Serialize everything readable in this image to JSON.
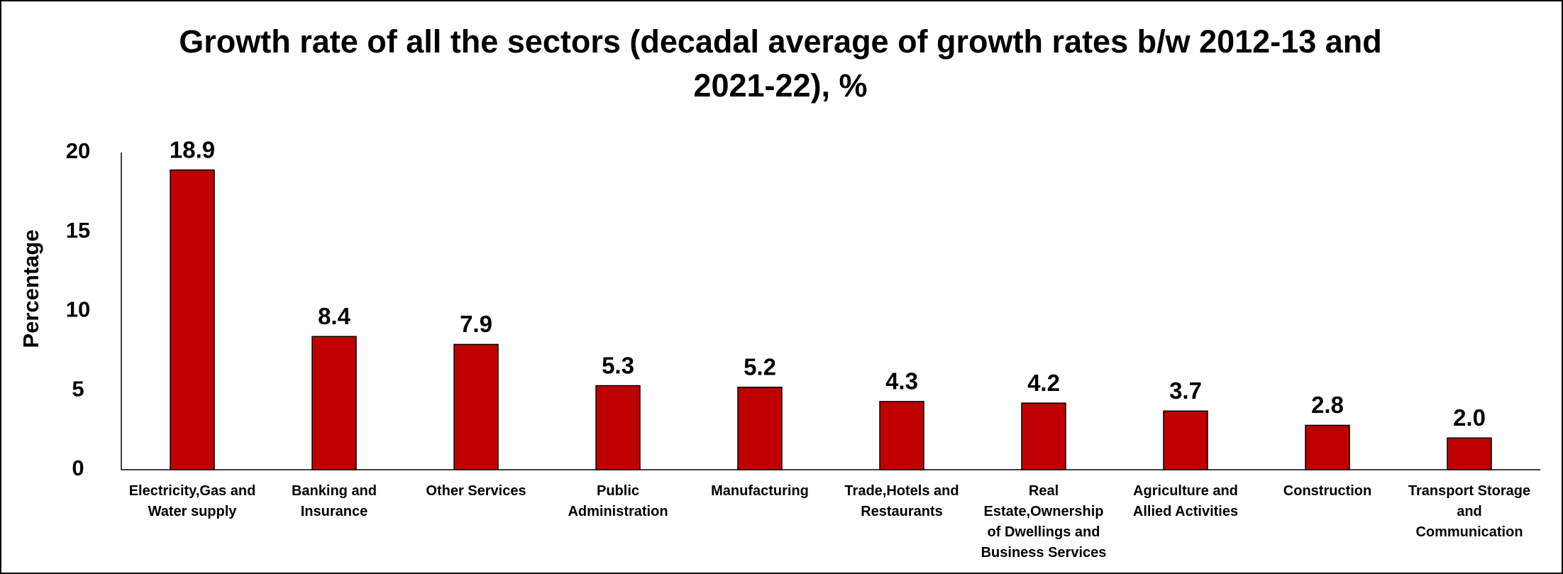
{
  "chart_data": {
    "type": "bar",
    "title": "Growth rate of all the sectors (decadal average of growth rates b/w 2012-13 and 2021-22), %",
    "y_label": "Percentage",
    "categories": [
      "Electricity,Gas and Water supply",
      "Banking and Insurance",
      "Other Services",
      "Public Administration",
      "Manufacturing",
      "Trade,Hotels and Restaurants",
      "Real Estate,Ownership of Dwellings and Business Services",
      "Agriculture and Allied Activities",
      "Construction",
      "Transport Storage and Communication"
    ],
    "values": [
      18.9,
      8.4,
      7.9,
      5.3,
      5.2,
      4.3,
      4.2,
      3.7,
      2.8,
      2
    ],
    "value_labels": [
      "18.9",
      "8.4",
      "7.9",
      "5.3",
      "5.2",
      "4.3",
      "4.2",
      "3.7",
      "2.8",
      "2.0"
    ],
    "color": "#c00000",
    "ylim": [
      0,
      20
    ],
    "yticks": [
      0,
      5,
      10,
      15,
      20
    ],
    "grid": false
  }
}
